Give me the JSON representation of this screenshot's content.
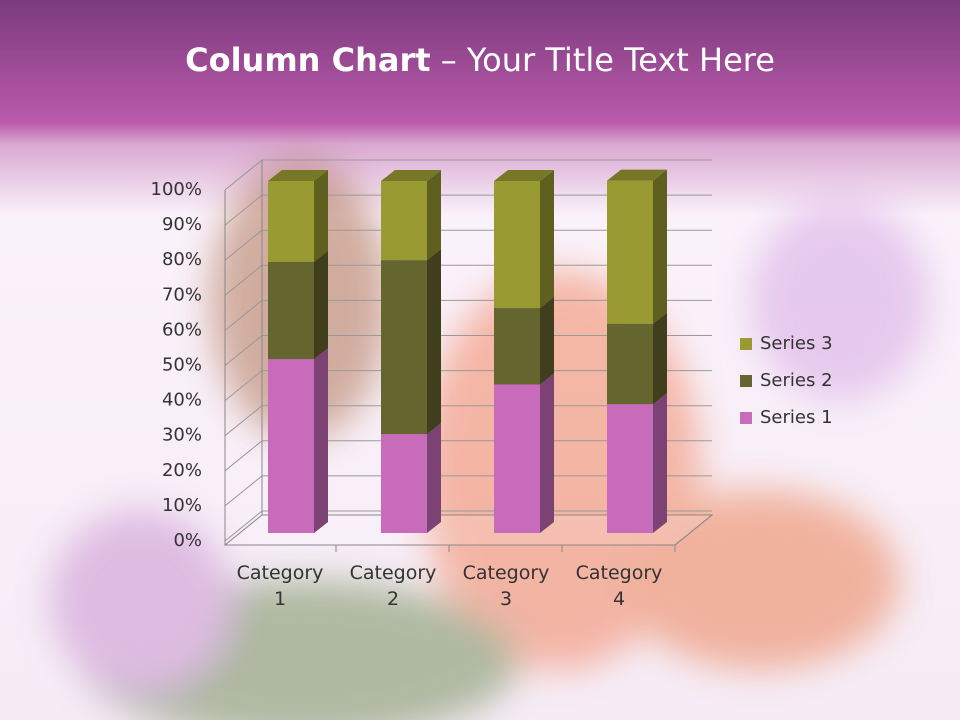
{
  "chart_data": {
    "type": "bar",
    "stacked": true,
    "title": "Column Chart",
    "subtitle": "– Your Title Text Here",
    "categories": [
      "Category 1",
      "Category 2",
      "Category 3",
      "Category 4"
    ],
    "series": [
      {
        "name": "Series 1",
        "color": "#c96bbb",
        "values": [
          49.4,
          28.1,
          42.2,
          36.6
        ]
      },
      {
        "name": "Series 2",
        "color": "#65652f",
        "values": [
          27.6,
          49.4,
          21.7,
          22.8
        ]
      },
      {
        "name": "Series 3",
        "color": "#999a32",
        "values": [
          23.0,
          22.5,
          36.1,
          40.7
        ]
      }
    ],
    "ylim": [
      0,
      100
    ],
    "yticks": [
      {
        "value": 0,
        "label": "0%"
      },
      {
        "value": 10,
        "label": "10%"
      },
      {
        "value": 20,
        "label": "20%"
      },
      {
        "value": 30,
        "label": "30%"
      },
      {
        "value": 40,
        "label": "40%"
      },
      {
        "value": 50,
        "label": "50%"
      },
      {
        "value": 60,
        "label": "60%"
      },
      {
        "value": 70,
        "label": "70%"
      },
      {
        "value": 80,
        "label": "80%"
      },
      {
        "value": 90,
        "label": "90%"
      },
      {
        "value": 100,
        "label": "100%"
      }
    ],
    "grid": true,
    "legend": "right"
  }
}
